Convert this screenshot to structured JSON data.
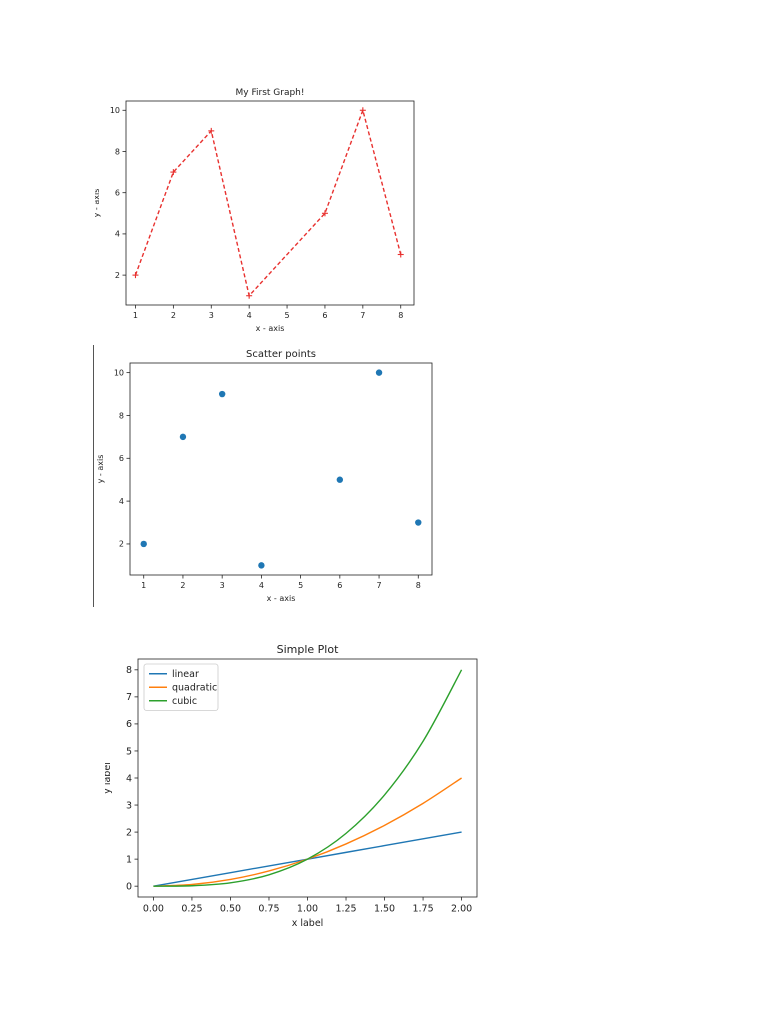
{
  "chart_data": [
    {
      "type": "line",
      "title": "My First Graph!",
      "xlabel": "x - axis",
      "ylabel": "y - axis",
      "x": [
        1,
        2,
        3,
        4,
        6,
        7,
        8
      ],
      "series": [
        {
          "values": [
            2,
            7,
            9,
            1,
            5,
            10,
            3
          ],
          "color": "#e8312f",
          "linestyle": "dashed",
          "marker": "plus"
        }
      ],
      "xlim": [
        0.75,
        8.35
      ],
      "ylim": [
        0.55,
        10.45
      ],
      "xticks": [
        1,
        2,
        3,
        4,
        5,
        6,
        7,
        8
      ],
      "yticks": [
        2,
        4,
        6,
        8,
        10
      ],
      "grid": false
    },
    {
      "type": "scatter",
      "title": "Scatter points",
      "xlabel": "x - axis",
      "ylabel": "y - axis",
      "x": [
        1,
        2,
        3,
        4,
        6,
        7,
        8
      ],
      "series": [
        {
          "values": [
            2,
            7,
            9,
            1,
            5,
            10,
            3
          ],
          "color": "#1f77b4",
          "marker": "circle"
        }
      ],
      "xlim": [
        0.65,
        8.35
      ],
      "ylim": [
        0.55,
        10.45
      ],
      "xticks": [
        1,
        2,
        3,
        4,
        5,
        6,
        7,
        8
      ],
      "yticks": [
        2,
        4,
        6,
        8,
        10
      ],
      "grid": false
    },
    {
      "type": "line",
      "title": "Simple Plot",
      "xlabel": "x label",
      "ylabel": "y label",
      "x": [
        0,
        0.25,
        0.5,
        0.75,
        1,
        1.25,
        1.5,
        1.75,
        2
      ],
      "series": [
        {
          "name": "linear",
          "values": [
            0,
            0.25,
            0.5,
            0.75,
            1,
            1.25,
            1.5,
            1.75,
            2
          ],
          "color": "#1f77b4"
        },
        {
          "name": "quadratic",
          "values": [
            0,
            0.0625,
            0.25,
            0.5625,
            1,
            1.5625,
            2.25,
            3.0625,
            4
          ],
          "color": "#ff7f0e"
        },
        {
          "name": "cubic",
          "values": [
            0,
            0.015625,
            0.125,
            0.421875,
            1,
            1.953125,
            3.375,
            5.359375,
            8
          ],
          "color": "#2ca02c"
        }
      ],
      "xlim": [
        -0.1,
        2.1
      ],
      "ylim": [
        -0.4,
        8.4
      ],
      "xticks": [
        "0.00",
        "0.25",
        "0.50",
        "0.75",
        "1.00",
        "1.25",
        "1.50",
        "1.75",
        "2.00"
      ],
      "yticks": [
        0,
        1,
        2,
        3,
        4,
        5,
        6,
        7,
        8
      ],
      "legend": "top-left",
      "grid": false
    }
  ]
}
